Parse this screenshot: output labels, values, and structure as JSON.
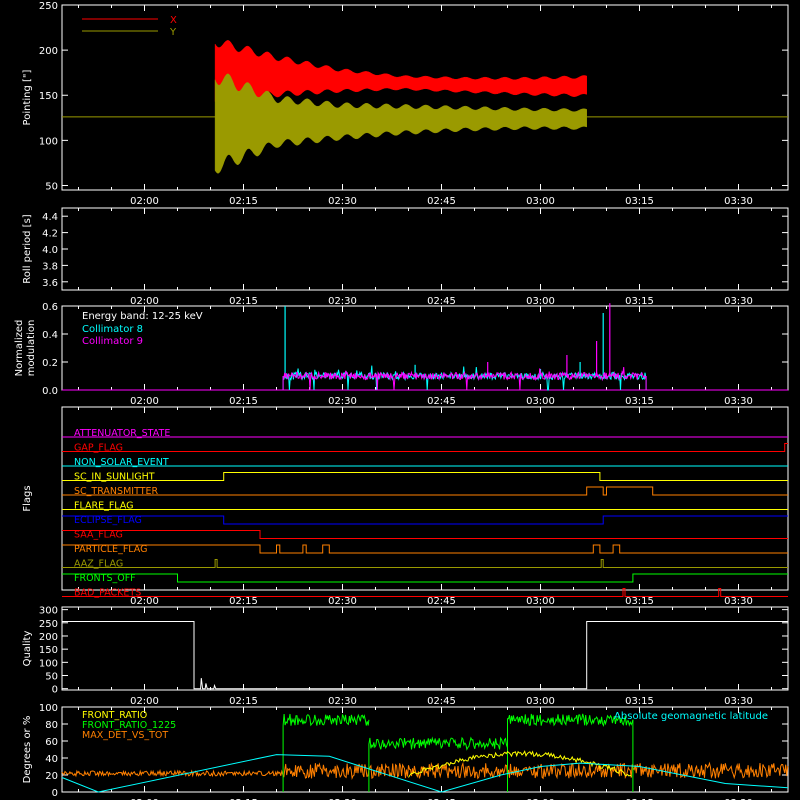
{
  "figure": {
    "background": "#000000",
    "foreground": "#ffffff",
    "time_ticks": [
      "02:00",
      "02:15",
      "02:30",
      "02:45",
      "03:00",
      "03:15",
      "03:30"
    ]
  },
  "chart_data": [
    {
      "id": "pointing",
      "type": "line",
      "ylabel": "Pointing [\"]",
      "ylim": [
        45,
        250
      ],
      "yticks": [
        50,
        100,
        150,
        200,
        250
      ],
      "xlim_minutes": [
        -12.5,
        97.5
      ],
      "legend": [
        {
          "name": "X",
          "color": "#ff0000"
        },
        {
          "name": "Y",
          "color": "#9a9a00"
        }
      ],
      "reference_line": {
        "y": 126,
        "color": "#9a9a00"
      },
      "series": [
        {
          "name": "X",
          "color": "#ff0000",
          "t_start": 10.7,
          "t_end": 67,
          "upper": [
            215,
            195,
            180,
            172,
            170,
            170,
            172
          ],
          "lower": [
            140,
            148,
            153,
            156,
            153,
            150,
            148
          ]
        },
        {
          "name": "Y",
          "color": "#9a9a00",
          "t_start": 10.7,
          "t_end": 67,
          "upper": [
            180,
            150,
            142,
            140,
            138,
            136,
            135
          ],
          "lower": [
            62,
            92,
            100,
            106,
            110,
            112,
            112
          ]
        }
      ]
    },
    {
      "id": "roll",
      "type": "line",
      "ylabel": "Roll period [s]",
      "ylim": [
        3.5,
        4.5
      ],
      "yticks": [
        3.6,
        3.8,
        4.0,
        4.2,
        4.4
      ],
      "series": []
    },
    {
      "id": "modulation",
      "type": "line",
      "ylabel": [
        "Normalized",
        "modulation"
      ],
      "ylim": [
        0,
        0.6
      ],
      "yticks": [
        0.0,
        0.2,
        0.4,
        0.6
      ],
      "annotation": "Energy band: 12-25 keV",
      "legend": [
        {
          "name": "Collimator 8",
          "color": "#00ffff"
        },
        {
          "name": "Collimator 9",
          "color": "#ff00ff"
        }
      ],
      "series": [
        {
          "name": "Collimator 8",
          "color": "#00ffff",
          "t_start": 21,
          "t_end": 76,
          "baseline": 0.1,
          "spikes": [
            [
              21.3,
              0.6
            ],
            [
              41,
              0.18
            ],
            [
              66,
              0.2
            ],
            [
              69.5,
              0.55
            ],
            [
              71,
              0.13
            ],
            [
              60,
              0.15
            ]
          ]
        },
        {
          "name": "Collimator 9",
          "color": "#ff00ff",
          "t_start": 21,
          "t_end": 76,
          "baseline": 0.1,
          "spikes": [
            [
              70.5,
              0.62
            ],
            [
              68.5,
              0.35
            ],
            [
              52,
              0.2
            ],
            [
              64,
              0.25
            ]
          ]
        }
      ]
    },
    {
      "id": "flags",
      "type": "line",
      "ylabel": "Flags",
      "flags": [
        {
          "name": "ATTENUATOR_STATE",
          "color": "#ff00ff",
          "segments": [
            [
              -12.5,
              97.5,
              0
            ]
          ]
        },
        {
          "name": "GAP_FLAG",
          "color": "#ff0000",
          "segments": [
            [
              -12.5,
              21,
              0
            ],
            [
              21,
              97,
              0
            ],
            [
              97,
              97.5,
              1
            ]
          ]
        },
        {
          "name": "NON_SOLAR_EVENT",
          "color": "#00ffff",
          "segments": [
            [
              -12.5,
              97.5,
              0
            ]
          ]
        },
        {
          "name": "SC_IN_SUNLIGHT",
          "color": "#ffff00",
          "segments": [
            [
              -12.5,
              12,
              0
            ],
            [
              12,
              69,
              1
            ],
            [
              69,
              97.5,
              0
            ]
          ]
        },
        {
          "name": "SC_TRANSMITTER",
          "color": "#ff8000",
          "segments": [
            [
              -12.5,
              67,
              0
            ],
            [
              67,
              69.5,
              1
            ],
            [
              69.5,
              70,
              0
            ],
            [
              70,
              77,
              1
            ],
            [
              77,
              97.5,
              0
            ]
          ]
        },
        {
          "name": "FLARE_FLAG",
          "color": "#ffff00",
          "segments": [
            [
              -12.5,
              97.5,
              0
            ]
          ]
        },
        {
          "name": "ECLIPSE_FLAG",
          "color": "#0000ff",
          "segments": [
            [
              -12.5,
              12,
              1
            ],
            [
              12,
              69.5,
              0
            ],
            [
              69.5,
              97.5,
              1
            ]
          ]
        },
        {
          "name": "SAA_FLAG",
          "color": "#ff0000",
          "segments": [
            [
              -12.5,
              17.5,
              1
            ],
            [
              17.5,
              97.5,
              0
            ]
          ]
        },
        {
          "name": "PARTICLE_FLAG",
          "color": "#ff8000",
          "segments": [
            [
              -12.5,
              17.5,
              1
            ],
            [
              17.5,
              20,
              0
            ],
            [
              20,
              20.5,
              1
            ],
            [
              20.5,
              24,
              0
            ],
            [
              24,
              24.5,
              1
            ],
            [
              24.5,
              27,
              0
            ],
            [
              27,
              28,
              1
            ],
            [
              28,
              68,
              0
            ],
            [
              68,
              69,
              1
            ],
            [
              69,
              71,
              0
            ],
            [
              71,
              72,
              1
            ],
            [
              72,
              97.5,
              0
            ]
          ]
        },
        {
          "name": "AAZ_FLAG",
          "color": "#9a9a00",
          "segments": [
            [
              -12.5,
              10.7,
              0
            ],
            [
              10.7,
              11,
              1
            ],
            [
              11,
              69.2,
              0
            ],
            [
              69.2,
              69.5,
              1
            ],
            [
              69.5,
              97.5,
              0
            ]
          ]
        },
        {
          "name": "FRONTS_OFF",
          "color": "#00ff00",
          "segments": [
            [
              -12.5,
              5,
              1
            ],
            [
              5,
              74,
              0
            ],
            [
              74,
              97.5,
              1
            ]
          ]
        },
        {
          "name": "BAD_PACKETS",
          "color": "#ff0000",
          "segments": [
            [
              -12.5,
              72.5,
              0
            ],
            [
              72.5,
              72.8,
              1
            ],
            [
              72.8,
              87,
              0
            ],
            [
              87,
              87.3,
              1
            ],
            [
              87.3,
              97.5,
              0
            ]
          ]
        }
      ]
    },
    {
      "id": "quality",
      "type": "line",
      "ylabel": "Quality",
      "ylim": [
        -5,
        310
      ],
      "yticks": [
        0,
        50,
        100,
        150,
        200,
        250,
        300
      ],
      "series": [
        {
          "name": "Quality",
          "color": "#ffffff",
          "points": [
            [
              -12.5,
              255
            ],
            [
              7.5,
              255
            ],
            [
              7.5,
              0
            ],
            [
              8.5,
              0
            ],
            [
              8.6,
              40
            ],
            [
              8.8,
              0
            ],
            [
              9.2,
              0
            ],
            [
              9.3,
              20
            ],
            [
              9.5,
              0
            ],
            [
              10.5,
              0
            ],
            [
              10.6,
              12
            ],
            [
              10.8,
              0
            ],
            [
              67,
              0
            ],
            [
              67,
              255
            ],
            [
              97.5,
              255
            ]
          ]
        }
      ]
    },
    {
      "id": "ratios",
      "type": "line",
      "ylabel": "Degrees or %",
      "ylim": [
        0,
        100
      ],
      "yticks": [
        0,
        20,
        40,
        60,
        80,
        100
      ],
      "legend": [
        {
          "name": "FRONT_RATIO",
          "color": "#ffff00"
        },
        {
          "name": "FRONT_RATIO_1225",
          "color": "#00ff00"
        },
        {
          "name": "MAX_DET_VS_TOT",
          "color": "#ff8000"
        }
      ],
      "annotation": "Absolute geomagnetic latitude",
      "annotation_color": "#00ffff",
      "series": [
        {
          "name": "FRONT_RATIO_1225",
          "color": "#00ff00",
          "segments": [
            [
              21,
              34,
              85
            ],
            [
              34,
              55,
              57
            ],
            [
              55,
              74,
              85
            ]
          ]
        },
        {
          "name": "FRONT_RATIO",
          "color": "#ffff00",
          "range": [
            40,
            74
          ]
        },
        {
          "name": "MAX_DET_VS_TOT",
          "color": "#ff8000",
          "range": [
            -12.5,
            97.5
          ],
          "level": 25
        },
        {
          "name": "Absolute geomagnetic latitude",
          "color": "#00ffff",
          "points": [
            [
              -12.5,
              17
            ],
            [
              -7,
              0
            ],
            [
              20,
              44
            ],
            [
              28,
              42
            ],
            [
              45,
              0
            ],
            [
              54,
              20
            ],
            [
              60,
              30
            ],
            [
              66,
              34
            ],
            [
              75,
              30
            ],
            [
              88,
              10
            ],
            [
              97.5,
              5
            ]
          ]
        }
      ]
    }
  ]
}
